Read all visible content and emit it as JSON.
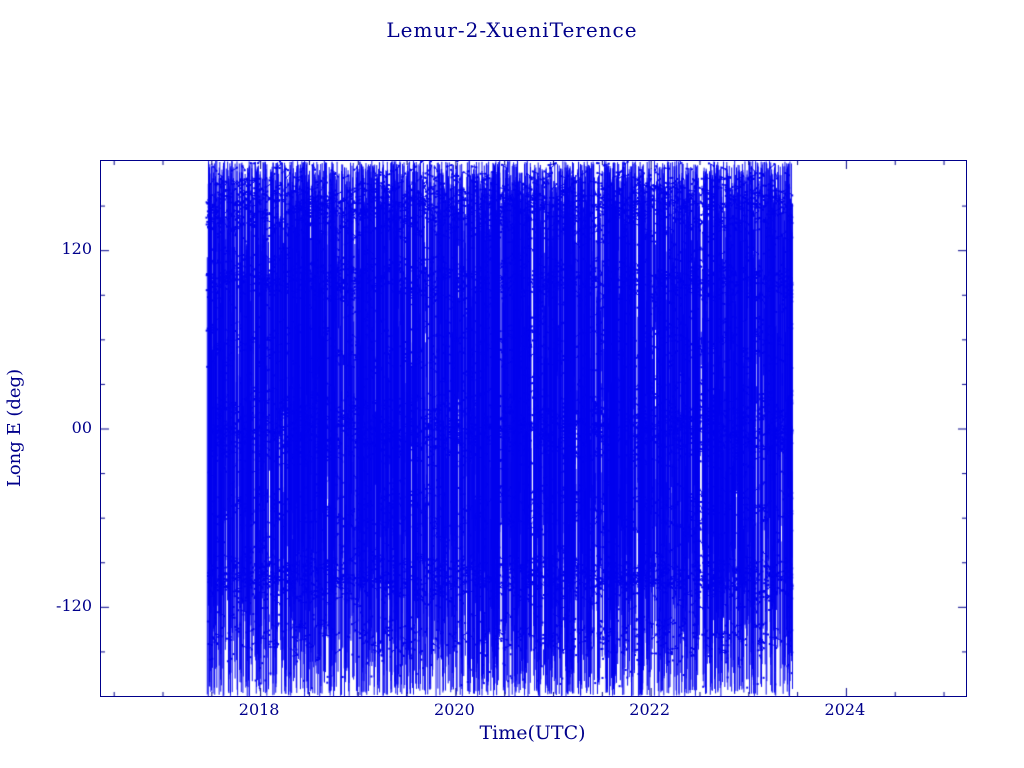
{
  "page": {
    "background": "#ffffff",
    "text_color": "#00008b"
  },
  "chart_data": {
    "type": "scatter",
    "title": "Lemur-2-XueniTerence",
    "xlabel": "Time(UTC)",
    "ylabel": "Long E (deg)",
    "axis_color": "#00008b",
    "data_color": "#0000ee",
    "grid": false,
    "legend": null,
    "xlim": [
      2016.37,
      2025.23
    ],
    "ylim": [
      -180,
      180
    ],
    "xticks": [
      {
        "value": 2018,
        "label": "2018"
      },
      {
        "value": 2020,
        "label": "2020"
      },
      {
        "value": 2022,
        "label": "2022"
      },
      {
        "value": 2024,
        "label": "2024"
      }
    ],
    "x_minor_step": 0.5,
    "yticks": [
      {
        "value": 120,
        "label": "120"
      },
      {
        "value": 0,
        "label": "00"
      },
      {
        "value": -120,
        "label": "-120"
      }
    ],
    "y_minor_step": 30,
    "series": [
      {
        "name": "Lemur-2-XueniTerence sub-satellite longitude",
        "marker": "square",
        "marker_size_px": 2,
        "color": "#0000ee",
        "x_start": 2017.45,
        "x_end": 2023.45,
        "y_min": -180,
        "y_max": 180,
        "note": "Wrapped longitude-vs-time ground-track coverage: thousands of near-vertical blue line segments spanning the full longitude range between mid-2017 and mid-2023, with denser horizontal concentrations near +150, +100, 0 and -100 deg and sparser scattered square markers below -120 deg."
      }
    ],
    "render": {
      "seed": 1337,
      "full_span_lines": 1500,
      "partial_lines": 1200,
      "bands": [
        {
          "center": 150,
          "spread": 22,
          "count": 1500
        },
        {
          "center": 100,
          "spread": 14,
          "count": 950
        },
        {
          "center": 55,
          "spread": 22,
          "count": 550
        },
        {
          "center": 0,
          "spread": 22,
          "count": 1600
        },
        {
          "center": -55,
          "spread": 20,
          "count": 550
        },
        {
          "center": -100,
          "spread": 15,
          "count": 1100
        },
        {
          "center": -140,
          "spread": 12,
          "count": 260
        }
      ],
      "scatter_markers": 220
    }
  }
}
